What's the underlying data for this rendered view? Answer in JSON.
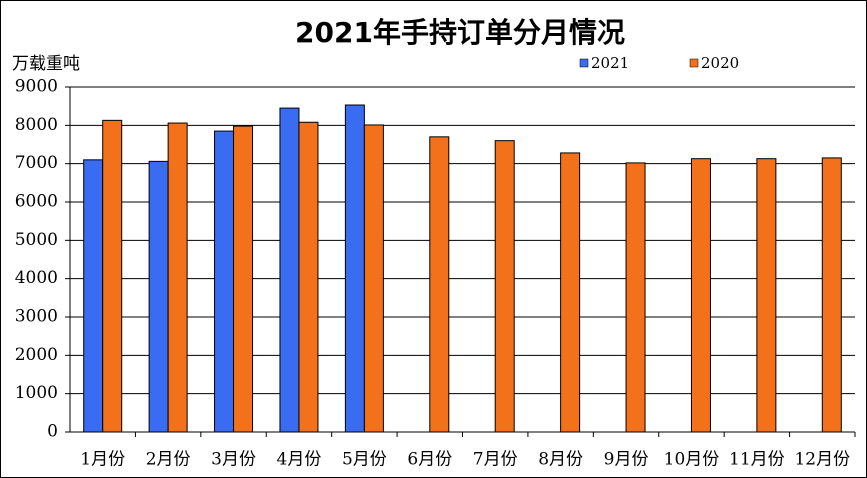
{
  "chart_data": {
    "type": "bar",
    "title": "2021年手持订单分月情况",
    "y_label": "万载重吨",
    "categories": [
      "1月份",
      "2月份",
      "3月份",
      "4月份",
      "5月份",
      "6月份",
      "7月份",
      "8月份",
      "9月份",
      "10月份",
      "11月份",
      "12月份"
    ],
    "series": [
      {
        "name": "2021",
        "color": "#3a6cf2",
        "values": [
          7100,
          7060,
          7850,
          8450,
          8530,
          null,
          null,
          null,
          null,
          null,
          null,
          null
        ]
      },
      {
        "name": "2020",
        "color": "#f4711c",
        "values": [
          8130,
          8060,
          7980,
          8080,
          8010,
          7700,
          7600,
          7280,
          7020,
          7130,
          7130,
          7150
        ]
      }
    ],
    "ylim": [
      0,
      9000
    ],
    "yticks": [
      0,
      1000,
      2000,
      3000,
      4000,
      5000,
      6000,
      7000,
      8000,
      9000
    ],
    "grid": true,
    "legend": "upper right"
  }
}
